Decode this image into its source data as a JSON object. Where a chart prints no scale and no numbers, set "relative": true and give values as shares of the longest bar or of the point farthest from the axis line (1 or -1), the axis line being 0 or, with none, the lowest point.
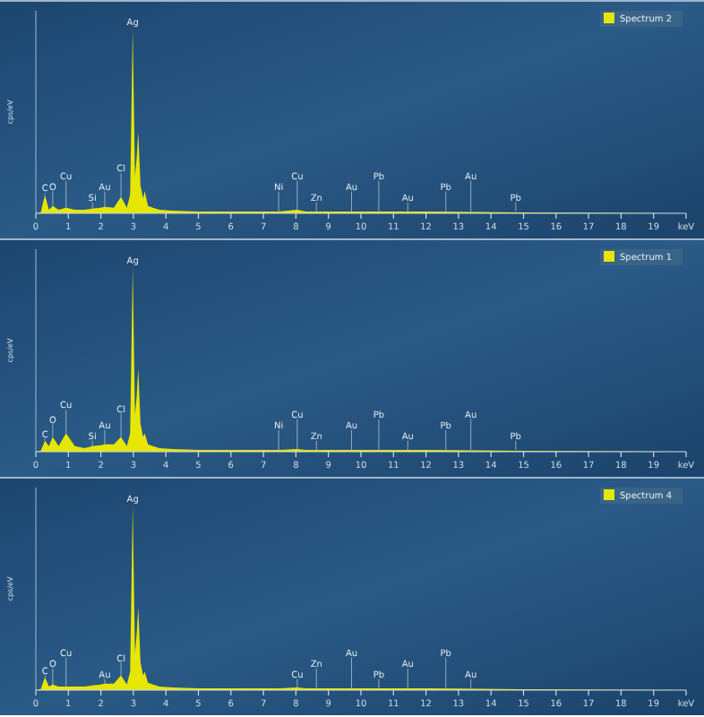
{
  "chart_data": [
    {
      "type": "area",
      "relative": true,
      "ylabel": "cps/eV",
      "xlabel": "keV",
      "legend": "top right",
      "xlim": [
        0,
        20
      ],
      "xticks": [
        0,
        1,
        2,
        3,
        4,
        5,
        6,
        7,
        8,
        9,
        10,
        11,
        12,
        13,
        14,
        15,
        16,
        17,
        18,
        19
      ],
      "x": [
        0,
        0.15,
        0.28,
        0.4,
        0.52,
        0.7,
        0.93,
        1.2,
        1.5,
        1.74,
        2.0,
        2.12,
        2.4,
        2.62,
        2.8,
        2.9,
        2.98,
        3.05,
        3.1,
        3.15,
        3.22,
        3.3,
        3.35,
        3.45,
        3.6,
        3.8,
        4.2,
        5,
        6,
        7,
        7.47,
        8.04,
        8.3,
        9,
        10,
        12,
        15,
        20
      ],
      "series": [
        {
          "name": "Spectrum 2",
          "color": "#e6e600",
          "values": [
            0,
            0.005,
            0.1,
            0.02,
            0.04,
            0.02,
            0.03,
            0.02,
            0.02,
            0.025,
            0.03,
            0.035,
            0.03,
            0.09,
            0.03,
            0.1,
            1,
            0.2,
            0.3,
            0.44,
            0.15,
            0.08,
            0.12,
            0.04,
            0.03,
            0.02,
            0.015,
            0.01,
            0.01,
            0.01,
            0.01,
            0.02,
            0.01,
            0.01,
            0.01,
            0.01,
            0.005,
            0
          ]
        }
      ],
      "annotations": [
        {
          "text": "C",
          "x": 0.28,
          "y": 0.1
        },
        {
          "text": "O",
          "x": 0.52,
          "y": 0.04
        },
        {
          "text": "Cu",
          "x": 0.93,
          "y": 0.03
        },
        {
          "text": "Si",
          "x": 1.74,
          "y": 0.025
        },
        {
          "text": "Au",
          "x": 2.12,
          "y": 0.035
        },
        {
          "text": "Cl",
          "x": 2.62,
          "y": 0.09
        },
        {
          "text": "Ag",
          "x": 2.98,
          "y": 1
        },
        {
          "text": "Ni",
          "x": 7.47,
          "y": 0.01
        },
        {
          "text": "Cu",
          "x": 8.04,
          "y": 0.02
        },
        {
          "text": "Zn",
          "x": 8.63,
          "y": 0.01
        },
        {
          "text": "Au",
          "x": 9.71,
          "y": 0.01
        },
        {
          "text": "Pb",
          "x": 10.55,
          "y": 0.01
        },
        {
          "text": "Au",
          "x": 11.44,
          "y": 0.01
        },
        {
          "text": "Pb",
          "x": 12.61,
          "y": 0.01
        },
        {
          "text": "Au",
          "x": 13.38,
          "y": 0.01
        },
        {
          "text": "Pb",
          "x": 14.76,
          "y": 0.01
        }
      ]
    },
    {
      "type": "area",
      "relative": true,
      "ylabel": "cps/eV",
      "xlabel": "keV",
      "legend": "top right",
      "xlim": [
        0,
        20
      ],
      "xticks": [
        0,
        1,
        2,
        3,
        4,
        5,
        6,
        7,
        8,
        9,
        10,
        11,
        12,
        13,
        14,
        15,
        16,
        17,
        18,
        19
      ],
      "x": [
        0,
        0.15,
        0.28,
        0.4,
        0.52,
        0.7,
        0.93,
        1.2,
        1.5,
        1.74,
        2.0,
        2.12,
        2.4,
        2.62,
        2.8,
        2.9,
        2.98,
        3.05,
        3.1,
        3.15,
        3.22,
        3.3,
        3.35,
        3.45,
        3.6,
        3.8,
        4.2,
        5,
        6,
        7,
        7.47,
        8.04,
        8.3,
        9,
        10,
        12,
        15,
        20
      ],
      "series": [
        {
          "name": "Spectrum 1",
          "color": "#e6e600",
          "values": [
            0,
            0.005,
            0.06,
            0.03,
            0.08,
            0.03,
            0.1,
            0.03,
            0.02,
            0.03,
            0.035,
            0.04,
            0.04,
            0.08,
            0.03,
            0.1,
            1,
            0.2,
            0.3,
            0.45,
            0.15,
            0.08,
            0.1,
            0.04,
            0.03,
            0.02,
            0.015,
            0.01,
            0.01,
            0.01,
            0.01,
            0.015,
            0.01,
            0.01,
            0.01,
            0.01,
            0.005,
            0
          ]
        }
      ],
      "annotations": [
        {
          "text": "C",
          "x": 0.28,
          "y": 0.06
        },
        {
          "text": "O",
          "x": 0.52,
          "y": 0.08
        },
        {
          "text": "Cu",
          "x": 0.93,
          "y": 0.1
        },
        {
          "text": "Si",
          "x": 1.74,
          "y": 0.03
        },
        {
          "text": "Au",
          "x": 2.12,
          "y": 0.04
        },
        {
          "text": "Cl",
          "x": 2.62,
          "y": 0.08
        },
        {
          "text": "Ag",
          "x": 2.98,
          "y": 1
        },
        {
          "text": "Ni",
          "x": 7.47,
          "y": 0.01
        },
        {
          "text": "Cu",
          "x": 8.04,
          "y": 0.015
        },
        {
          "text": "Zn",
          "x": 8.63,
          "y": 0.01
        },
        {
          "text": "Au",
          "x": 9.71,
          "y": 0.01
        },
        {
          "text": "Pb",
          "x": 10.55,
          "y": 0.01
        },
        {
          "text": "Au",
          "x": 11.44,
          "y": 0.01
        },
        {
          "text": "Pb",
          "x": 12.61,
          "y": 0.01
        },
        {
          "text": "Au",
          "x": 13.38,
          "y": 0.01
        },
        {
          "text": "Pb",
          "x": 14.76,
          "y": 0.01
        }
      ]
    },
    {
      "type": "area",
      "relative": true,
      "ylabel": "cps/eV",
      "xlabel": "keV",
      "legend": "top right",
      "xlim": [
        0,
        20
      ],
      "xticks": [
        0,
        1,
        2,
        3,
        4,
        5,
        6,
        7,
        8,
        9,
        10,
        11,
        12,
        13,
        14,
        15,
        16,
        17,
        18,
        19
      ],
      "x": [
        0,
        0.15,
        0.28,
        0.4,
        0.52,
        0.7,
        0.93,
        1.2,
        1.5,
        1.74,
        2.0,
        2.12,
        2.4,
        2.62,
        2.8,
        2.9,
        2.98,
        3.05,
        3.1,
        3.15,
        3.22,
        3.3,
        3.35,
        3.45,
        3.6,
        3.8,
        4.2,
        5,
        6,
        7,
        7.47,
        8.04,
        8.3,
        9,
        10,
        12,
        15,
        20
      ],
      "series": [
        {
          "name": "Spectrum 4",
          "color": "#e6e600",
          "values": [
            0,
            0.005,
            0.07,
            0.02,
            0.03,
            0.02,
            0.02,
            0.02,
            0.02,
            0.025,
            0.03,
            0.035,
            0.035,
            0.08,
            0.03,
            0.1,
            1,
            0.2,
            0.3,
            0.45,
            0.15,
            0.08,
            0.1,
            0.04,
            0.03,
            0.02,
            0.015,
            0.01,
            0.01,
            0.01,
            0.01,
            0.015,
            0.01,
            0.01,
            0.01,
            0.01,
            0.005,
            0
          ]
        }
      ],
      "annotations": [
        {
          "text": "C",
          "x": 0.28,
          "y": 0.07
        },
        {
          "text": "O",
          "x": 0.52,
          "y": 0.03
        },
        {
          "text": "Cu",
          "x": 0.93,
          "y": 0.02
        },
        {
          "text": "Au",
          "x": 2.12,
          "y": 0.035
        },
        {
          "text": "Cl",
          "x": 2.62,
          "y": 0.08
        },
        {
          "text": "Ag",
          "x": 2.98,
          "y": 1
        },
        {
          "text": "Cu",
          "x": 8.04,
          "y": 0.015
        },
        {
          "text": "Zn",
          "x": 8.63,
          "y": 0.01
        },
        {
          "text": "Au",
          "x": 9.71,
          "y": 0.01
        },
        {
          "text": "Pb",
          "x": 10.55,
          "y": 0.01
        },
        {
          "text": "Au",
          "x": 11.44,
          "y": 0.01
        },
        {
          "text": "Pb",
          "x": 12.61,
          "y": 0.01
        },
        {
          "text": "Au",
          "x": 13.38,
          "y": 0.01
        }
      ]
    }
  ]
}
